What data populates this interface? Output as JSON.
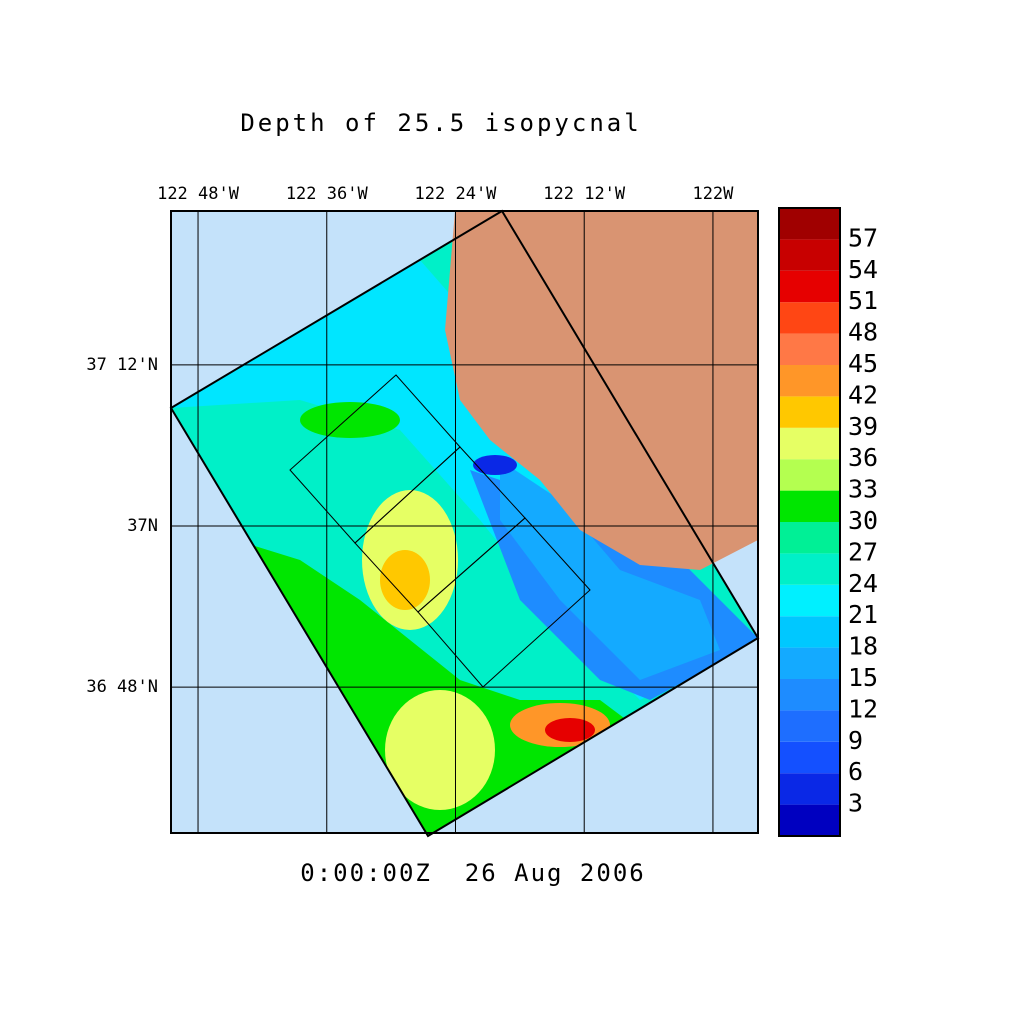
{
  "chart_data": {
    "type": "map",
    "title": "Depth of 25.5 isopycnal",
    "time_label": "0:00:00Z  26 Aug 2006",
    "xlim": [
      -122.842,
      -121.93
    ],
    "ylim": [
      36.619,
      37.391
    ],
    "xticks": [
      {
        "value": -122.8,
        "label": "122 48'W"
      },
      {
        "value": -122.6,
        "label": "122 36'W"
      },
      {
        "value": -122.4,
        "label": "122 24'W"
      },
      {
        "value": -122.2,
        "label": "122 12'W"
      },
      {
        "value": -122.0,
        "label": "122W"
      }
    ],
    "yticks": [
      {
        "value": 36.8,
        "label": "36 48'N"
      },
      {
        "value": 37.0,
        "label": "37N"
      },
      {
        "value": 37.2,
        "label": "37 12'N"
      }
    ],
    "grid": true,
    "colorbar": {
      "levels": [
        0,
        3,
        6,
        9,
        12,
        15,
        18,
        21,
        24,
        27,
        30,
        33,
        36,
        39,
        42,
        45,
        48,
        51,
        54,
        57,
        60
      ],
      "ticks": [
        3,
        6,
        9,
        12,
        15,
        18,
        21,
        24,
        27,
        30,
        33,
        36,
        39,
        42,
        45,
        48,
        51,
        54,
        57
      ],
      "colors": [
        "#0000c0",
        "#0a28e6",
        "#1450ff",
        "#1e6eff",
        "#1e8cff",
        "#14aaff",
        "#00c8ff",
        "#00f0ff",
        "#00f0c8",
        "#00f096",
        "#00e600",
        "#b4ff50",
        "#e6ff64",
        "#ffc800",
        "#ff9628",
        "#ff7846",
        "#ff4614",
        "#e60000",
        "#c80000",
        "#a00000"
      ]
    }
  }
}
